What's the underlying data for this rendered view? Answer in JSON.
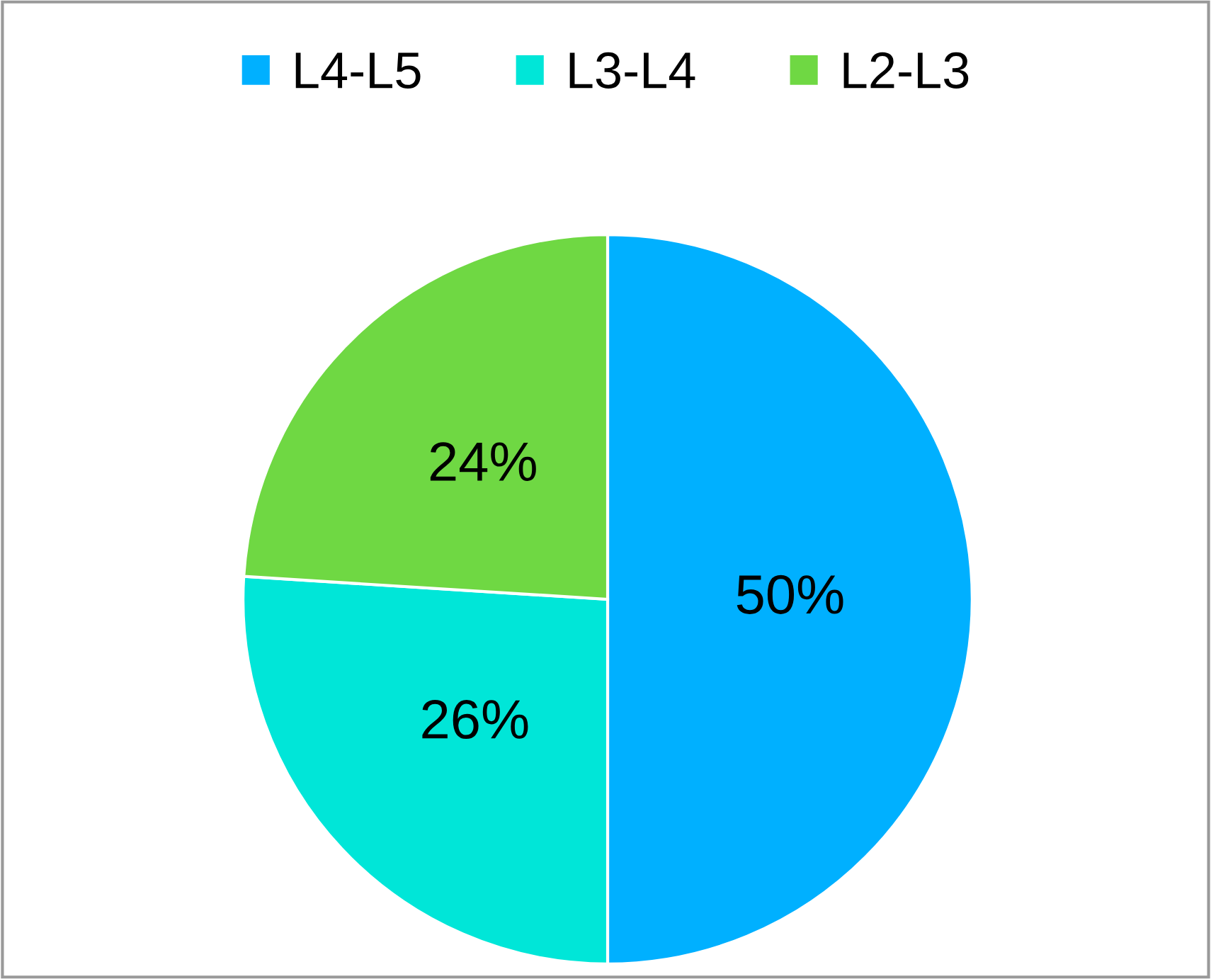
{
  "chart_data": {
    "type": "pie",
    "categories": [
      "L4-L5",
      "L3-L4",
      "L2-L3"
    ],
    "values": [
      50,
      26,
      24
    ],
    "colors": [
      "#00b0ff",
      "#00e6d8",
      "#6fd843"
    ],
    "value_labels": [
      "50%",
      "26%",
      "24%"
    ],
    "legend": "top"
  }
}
